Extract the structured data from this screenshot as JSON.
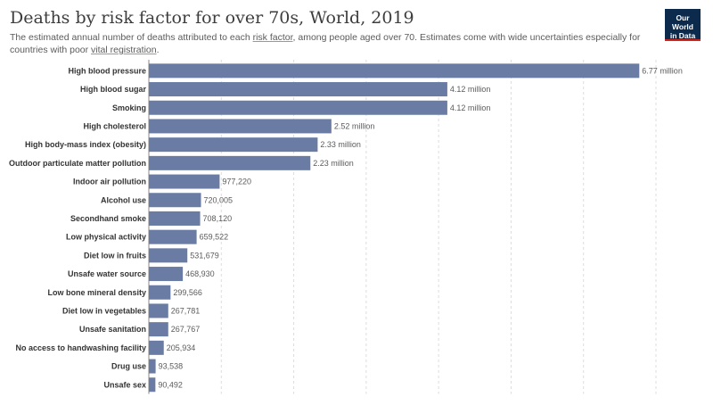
{
  "header": {
    "title": "Deaths by risk factor for over 70s, World, 2019",
    "subtitle_prefix": "The estimated annual number of deaths attributed to each ",
    "subtitle_link": "risk factor",
    "subtitle_middle": ", among people aged over 70. Estimates come with wide uncertainties especially for countries with poor ",
    "subtitle_link2": "vital registration",
    "subtitle_end": "."
  },
  "logo": {
    "line1": "Our World",
    "line2": "in Data"
  },
  "colors": {
    "bar": "#6a7ca4",
    "logo_bg": "#0c2a4c",
    "logo_accent": "#ce261e"
  },
  "chart_data": {
    "type": "bar",
    "orientation": "horizontal",
    "title": "Deaths by risk factor for over 70s, World, 2019",
    "categories": [
      "High blood pressure",
      "High blood sugar",
      "Smoking",
      "High cholesterol",
      "High body-mass index (obesity)",
      "Outdoor particulate matter pollution",
      "Indoor air pollution",
      "Alcohol use",
      "Secondhand smoke",
      "Low physical activity",
      "Diet low in fruits",
      "Unsafe water source",
      "Low bone mineral density",
      "Diet low in vegetables",
      "Unsafe sanitation",
      "No access to handwashing facility",
      "Drug use",
      "Unsafe sex"
    ],
    "values": [
      6770000,
      4120000,
      4120000,
      2520000,
      2330000,
      2230000,
      977220,
      720005,
      708120,
      659522,
      531679,
      468930,
      299566,
      267781,
      267767,
      205934,
      93538,
      90492
    ],
    "value_labels": [
      "6.77 million",
      "4.12 million",
      "4.12 million",
      "2.52 million",
      "2.33 million",
      "2.23 million",
      "977,220",
      "720,005",
      "708,120",
      "659,522",
      "531,679",
      "468,930",
      "299,566",
      "267,781",
      "267,767",
      "205,934",
      "93,538",
      "90,492"
    ],
    "xlim": [
      0,
      7000000
    ],
    "grid": true
  }
}
